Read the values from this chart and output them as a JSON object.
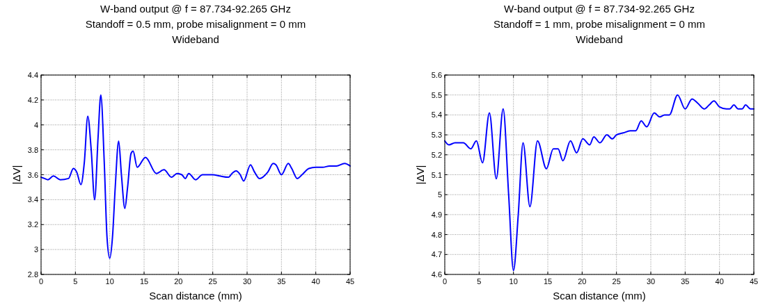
{
  "chart_data": [
    {
      "type": "line",
      "title": "W-band output @ f = 87.734-92.265 GHz",
      "subtitle": "Standoff = 0.5 mm, probe misalignment = 0 mm\nWideband",
      "xlabel": "Scan distance (mm)",
      "ylabel": "|ΔV|",
      "grid": true,
      "xlim": [
        0,
        45
      ],
      "xticks": [
        0,
        5,
        10,
        15,
        20,
        25,
        30,
        35,
        40,
        45
      ],
      "ylim": [
        2.8,
        4.4
      ],
      "yticks": [
        {
          "value": 2.8,
          "label": "2.8"
        },
        {
          "value": 3,
          "label": "3"
        },
        {
          "value": 3.2,
          "label": "3.2"
        },
        {
          "value": 3.4,
          "label": "3.4"
        },
        {
          "value": 3.6,
          "label": "3.6"
        },
        {
          "value": 3.8,
          "label": "3.8"
        },
        {
          "value": 4,
          "label": "4"
        },
        {
          "value": 4.2,
          "label": "4.2"
        },
        {
          "value": 4.4,
          "label": "4.4"
        }
      ],
      "x": [
        0,
        0.5,
        1,
        1.8,
        2.8,
        4,
        4.7,
        5.2,
        5.8,
        6.3,
        6.8,
        7.3,
        7.8,
        8.3,
        8.7,
        9.2,
        9.6,
        10,
        10.4,
        10.8,
        11.3,
        11.7,
        12.2,
        12.6,
        13.1,
        13.4,
        14,
        15.2,
        16.8,
        17.9,
        19,
        19.8,
        20.5,
        21,
        21.5,
        22.5,
        23.5,
        25,
        26,
        27.3,
        27.8,
        28.4,
        29,
        29.5,
        30.5,
        31,
        31.8,
        33,
        33.8,
        34.2,
        35,
        36,
        36.5,
        37.3,
        38,
        39,
        40,
        41,
        42,
        43,
        44.2,
        45
      ],
      "series": [
        {
          "color": "#0000ff",
          "values": [
            3.58,
            3.57,
            3.56,
            3.59,
            3.56,
            3.57,
            3.65,
            3.62,
            3.52,
            3.7,
            4.07,
            3.8,
            3.4,
            3.9,
            4.24,
            3.7,
            3.1,
            2.93,
            3.1,
            3.5,
            3.87,
            3.6,
            3.33,
            3.5,
            3.77,
            3.79,
            3.66,
            3.74,
            3.61,
            3.64,
            3.58,
            3.61,
            3.6,
            3.57,
            3.61,
            3.56,
            3.6,
            3.6,
            3.59,
            3.58,
            3.61,
            3.63,
            3.6,
            3.55,
            3.68,
            3.63,
            3.57,
            3.62,
            3.69,
            3.68,
            3.6,
            3.69,
            3.65,
            3.57,
            3.6,
            3.65,
            3.66,
            3.66,
            3.67,
            3.67,
            3.69,
            3.67
          ]
        }
      ]
    },
    {
      "type": "line",
      "title": "W-band output @ f = 87.734-92.265 GHz",
      "subtitle": "Standoff = 1 mm, probe misalignment = 0 mm\nWideband",
      "xlabel": "Scan distance (mm)",
      "ylabel": "|ΔV|",
      "grid": true,
      "xlim": [
        0,
        45
      ],
      "xticks": [
        0,
        5,
        10,
        15,
        20,
        25,
        30,
        35,
        40,
        45
      ],
      "ylim": [
        4.6,
        5.6
      ],
      "yticks": [
        {
          "value": 4.6,
          "label": "4.6"
        },
        {
          "value": 4.7,
          "label": "4.7"
        },
        {
          "value": 4.8,
          "label": "4.8"
        },
        {
          "value": 4.9,
          "label": "4.9"
        },
        {
          "value": 5,
          "label": "5"
        },
        {
          "value": 5.1,
          "label": "5.1"
        },
        {
          "value": 5.2,
          "label": "5.2"
        },
        {
          "value": 5.3,
          "label": "5.3"
        },
        {
          "value": 5.4,
          "label": "5.4"
        },
        {
          "value": 5.5,
          "label": "5.5"
        },
        {
          "value": 5.6,
          "label": "5.6"
        }
      ],
      "x": [
        0,
        0.6,
        1.5,
        2.7,
        3.8,
        4.6,
        5.5,
        6.5,
        7.5,
        8.5,
        9.3,
        10,
        10.7,
        11.4,
        12.4,
        13.5,
        14.8,
        15.8,
        16.5,
        17.2,
        18.3,
        19.2,
        20.1,
        21.1,
        21.7,
        22.6,
        23.6,
        24.4,
        25,
        26,
        27,
        27.8,
        28.6,
        29.4,
        30.5,
        31.3,
        32,
        32.7,
        33.9,
        35,
        36,
        36.8,
        37.8,
        38.5,
        39.2,
        40,
        41,
        41.5,
        42.1,
        42.7,
        43.3,
        43.8,
        44.5,
        45
      ],
      "series": [
        {
          "color": "#0000ff",
          "values": [
            5.27,
            5.25,
            5.26,
            5.26,
            5.23,
            5.27,
            5.16,
            5.41,
            5.08,
            5.43,
            5.0,
            4.62,
            4.9,
            5.26,
            4.94,
            5.27,
            5.13,
            5.23,
            5.23,
            5.17,
            5.27,
            5.21,
            5.28,
            5.25,
            5.29,
            5.26,
            5.3,
            5.28,
            5.3,
            5.31,
            5.32,
            5.32,
            5.37,
            5.34,
            5.41,
            5.39,
            5.4,
            5.4,
            5.5,
            5.43,
            5.48,
            5.46,
            5.43,
            5.45,
            5.47,
            5.44,
            5.43,
            5.43,
            5.45,
            5.43,
            5.43,
            5.45,
            5.43,
            5.43
          ]
        }
      ]
    }
  ]
}
